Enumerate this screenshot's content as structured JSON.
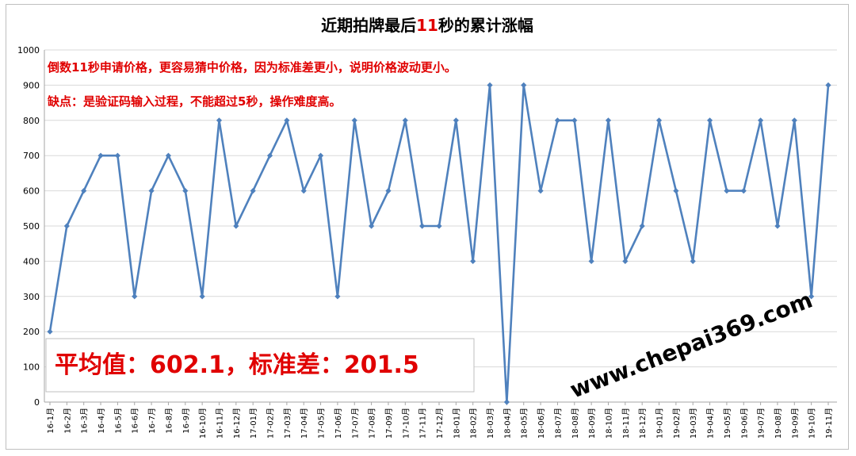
{
  "chart_data": {
    "type": "line",
    "title_parts": {
      "prefix": "近期拍牌最后",
      "highlight": "11",
      "suffix": "秒的累计涨幅"
    },
    "xlabel": "",
    "ylabel": "",
    "ylim": [
      0,
      1000
    ],
    "yticks": [
      0,
      100,
      200,
      300,
      400,
      500,
      600,
      700,
      800,
      900,
      1000
    ],
    "grid": true,
    "legend": "none",
    "categories": [
      "16-1月",
      "16-2月",
      "16-3月",
      "16-4月",
      "16-5月",
      "16-6月",
      "16-7月",
      "16-8月",
      "16-9月",
      "16-10月",
      "16-11月",
      "16-12月",
      "17-01月",
      "17-02月",
      "17-03月",
      "17-04月",
      "17-05月",
      "17-06月",
      "17-07月",
      "17-08月",
      "17-09月",
      "17-10月",
      "17-11月",
      "17-12月",
      "18-01月",
      "18-02月",
      "18-03月",
      "18-04月",
      "18-05月",
      "18-06月",
      "18-07月",
      "18-08月",
      "18-09月",
      "18-10月",
      "18-11月",
      "18-12月",
      "19-01月",
      "19-02月",
      "19-03月",
      "19-04月",
      "19-05月",
      "19-06月",
      "19-07月",
      "19-08月",
      "19-09月",
      "19-10月",
      "19-11月"
    ],
    "values": [
      200,
      500,
      600,
      700,
      700,
      300,
      600,
      700,
      600,
      300,
      800,
      500,
      600,
      700,
      800,
      600,
      700,
      300,
      800,
      500,
      600,
      800,
      500,
      500,
      800,
      400,
      900,
      0,
      900,
      600,
      800,
      800,
      400,
      800,
      400,
      500,
      800,
      600,
      400,
      800,
      600,
      600,
      800,
      500,
      800,
      300,
      900
    ],
    "annotations": [
      "倒数11秒申请价格，更容易猜中价格，因为标准差更小，说明价格波动更小。",
      "缺点：是验证码输入过程，不能超过5秒，操作难度高。"
    ],
    "stats": {
      "label": "平均值：602.1，标准差：201.5"
    },
    "watermark": "www.chepai369.com"
  },
  "colors": {
    "line": "#4f81bd",
    "grid": "#d9d9d9",
    "accent": "#e00000",
    "title_highlight": "#e00000"
  }
}
